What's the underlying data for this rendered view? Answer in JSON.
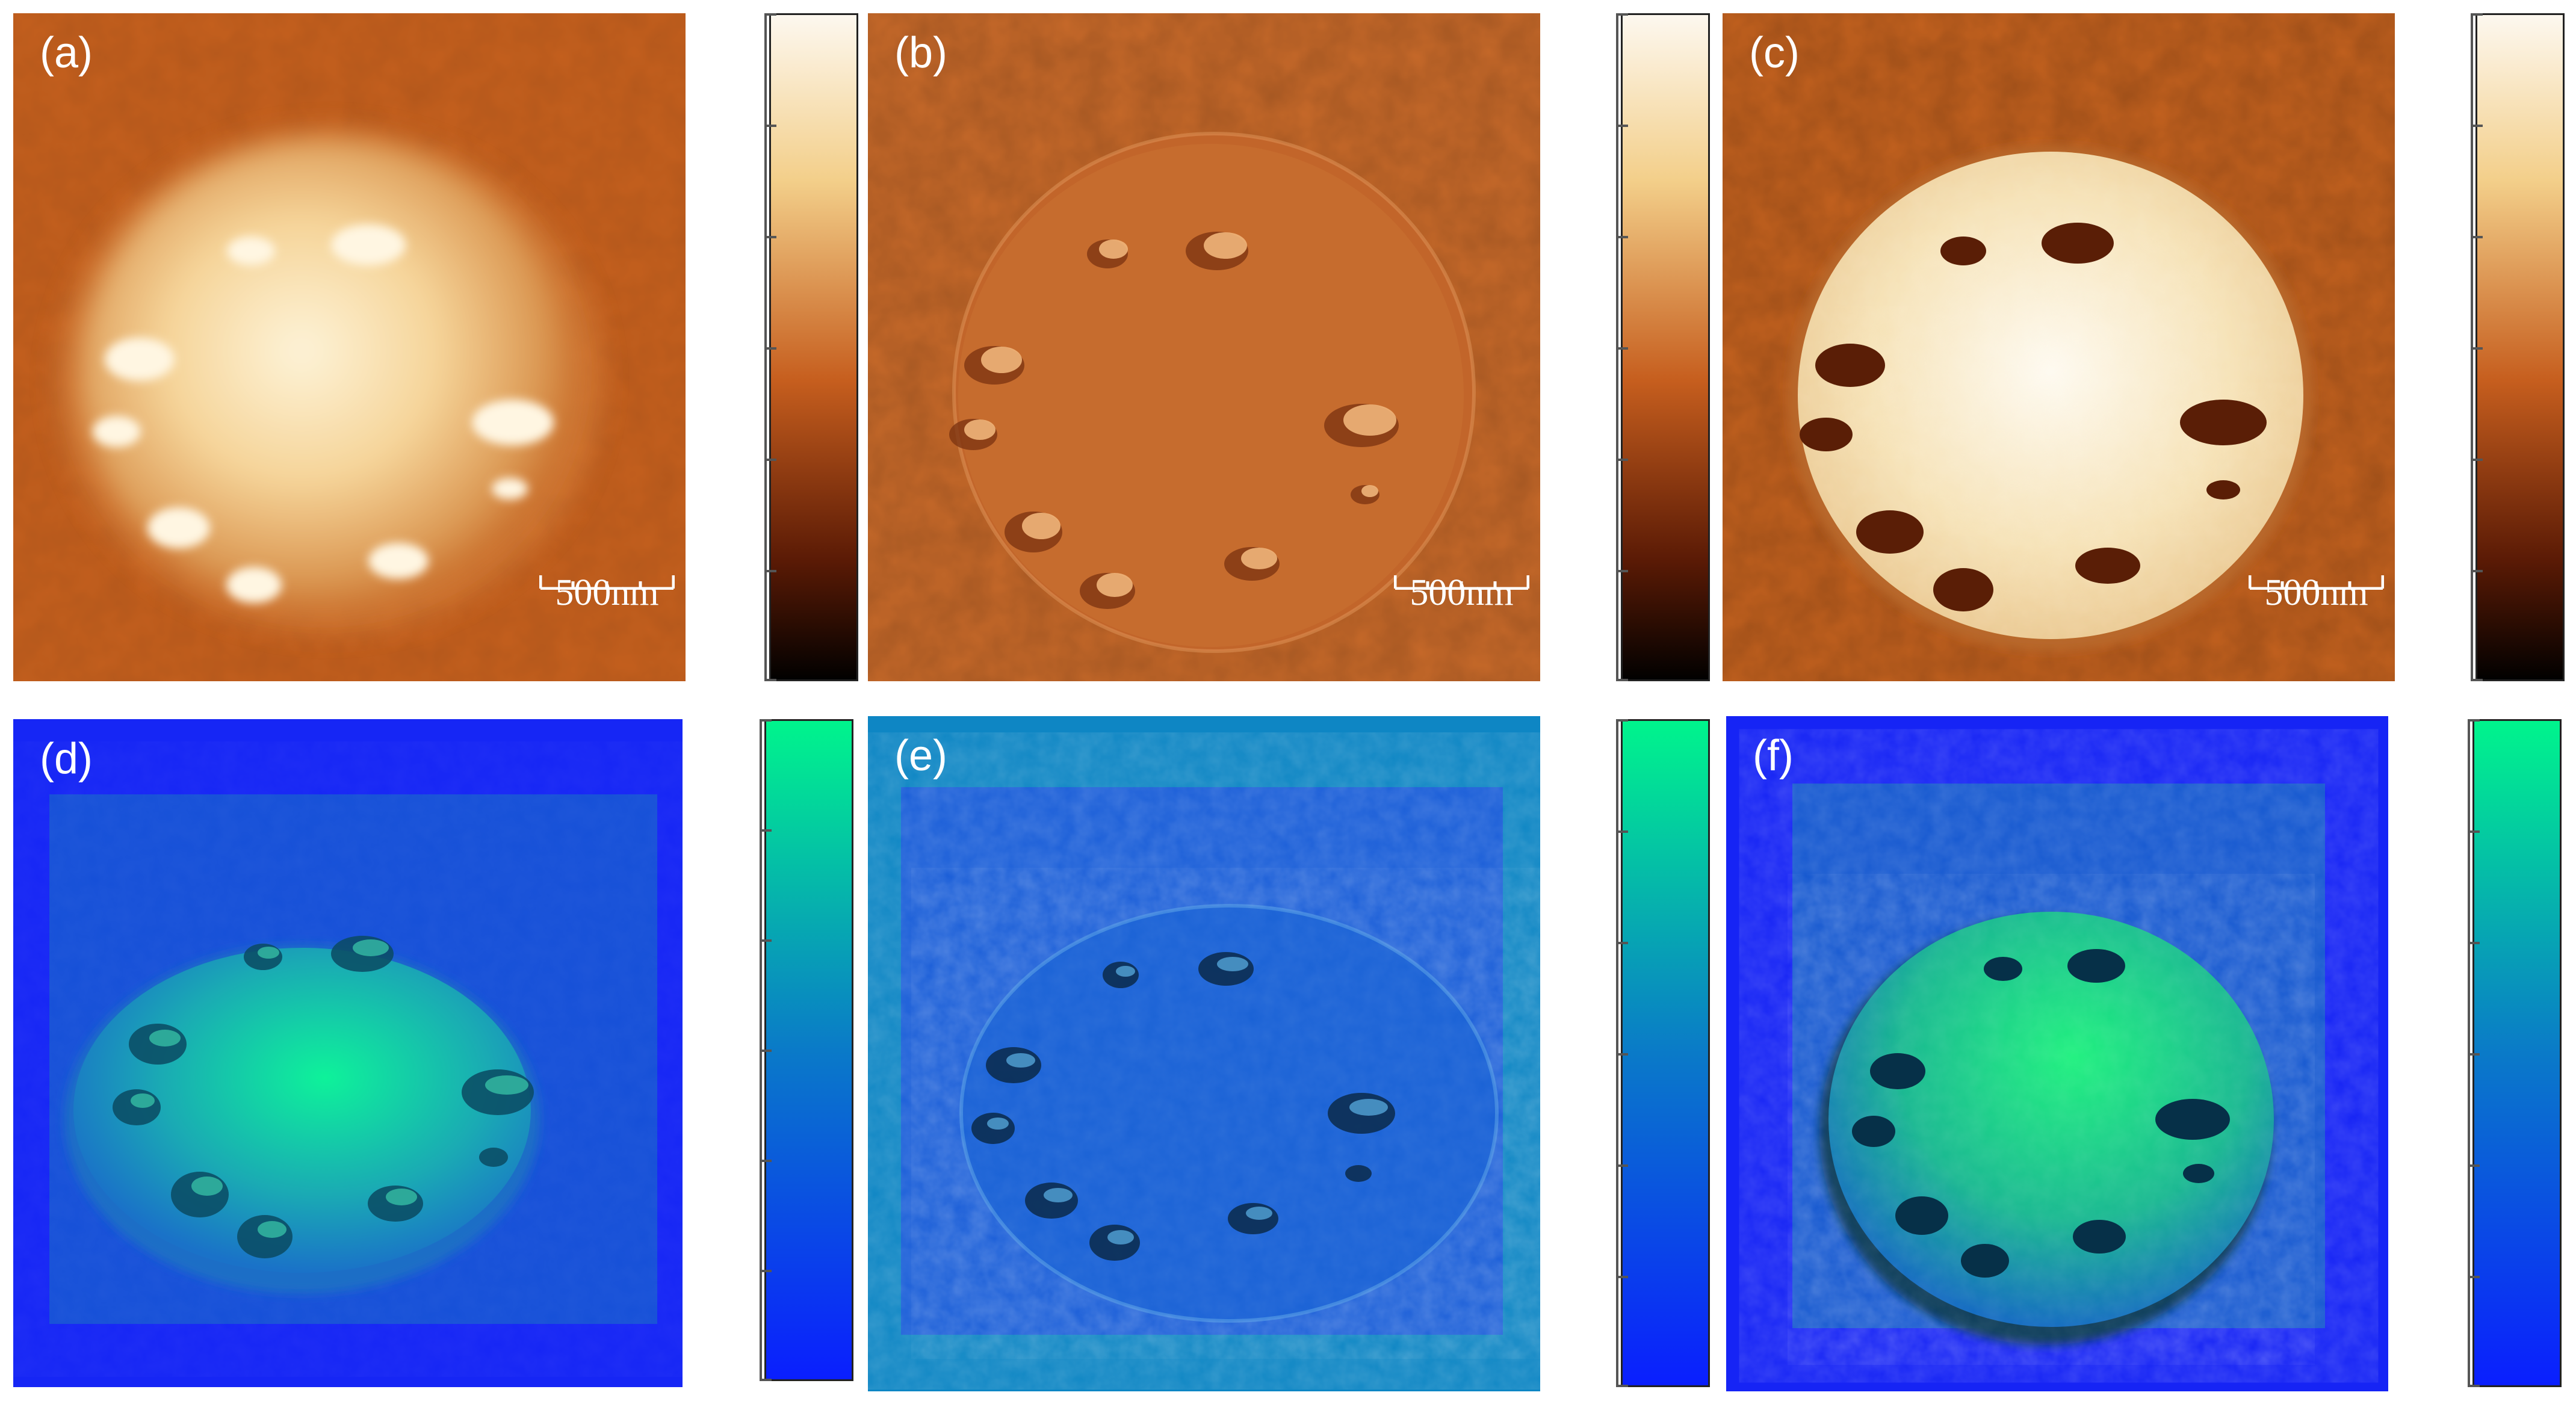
{
  "panels": [
    {
      "id": "a",
      "label": "(a)",
      "scale_label": "500nm"
    },
    {
      "id": "b",
      "label": "(b)",
      "scale_label": "500nm"
    },
    {
      "id": "c",
      "label": "(c)",
      "scale_label": "500nm"
    },
    {
      "id": "d",
      "label": "(d)"
    },
    {
      "id": "e",
      "label": "(e)"
    },
    {
      "id": "f",
      "label": "(f)"
    }
  ],
  "colors": {
    "orange_dark": "#000000",
    "orange_mid": "#c65e1e",
    "orange_light": "#f3cf8a",
    "orange_top": "#fdf8f0",
    "green_top": "#00f58c",
    "blue_bottom": "#0a1eff",
    "panel_bg_blue": "#1624f5",
    "panel_bg_teal": "#0e86c4"
  },
  "colorbars": [
    {
      "id": "cb-a",
      "scheme": "afm-orange"
    },
    {
      "id": "cb-b",
      "scheme": "afm-orange"
    },
    {
      "id": "cb-c",
      "scheme": "afm-orange"
    },
    {
      "id": "cb-d",
      "scheme": "blue-green"
    },
    {
      "id": "cb-e",
      "scheme": "blue-green"
    },
    {
      "id": "cb-f",
      "scheme": "blue-green"
    }
  ]
}
